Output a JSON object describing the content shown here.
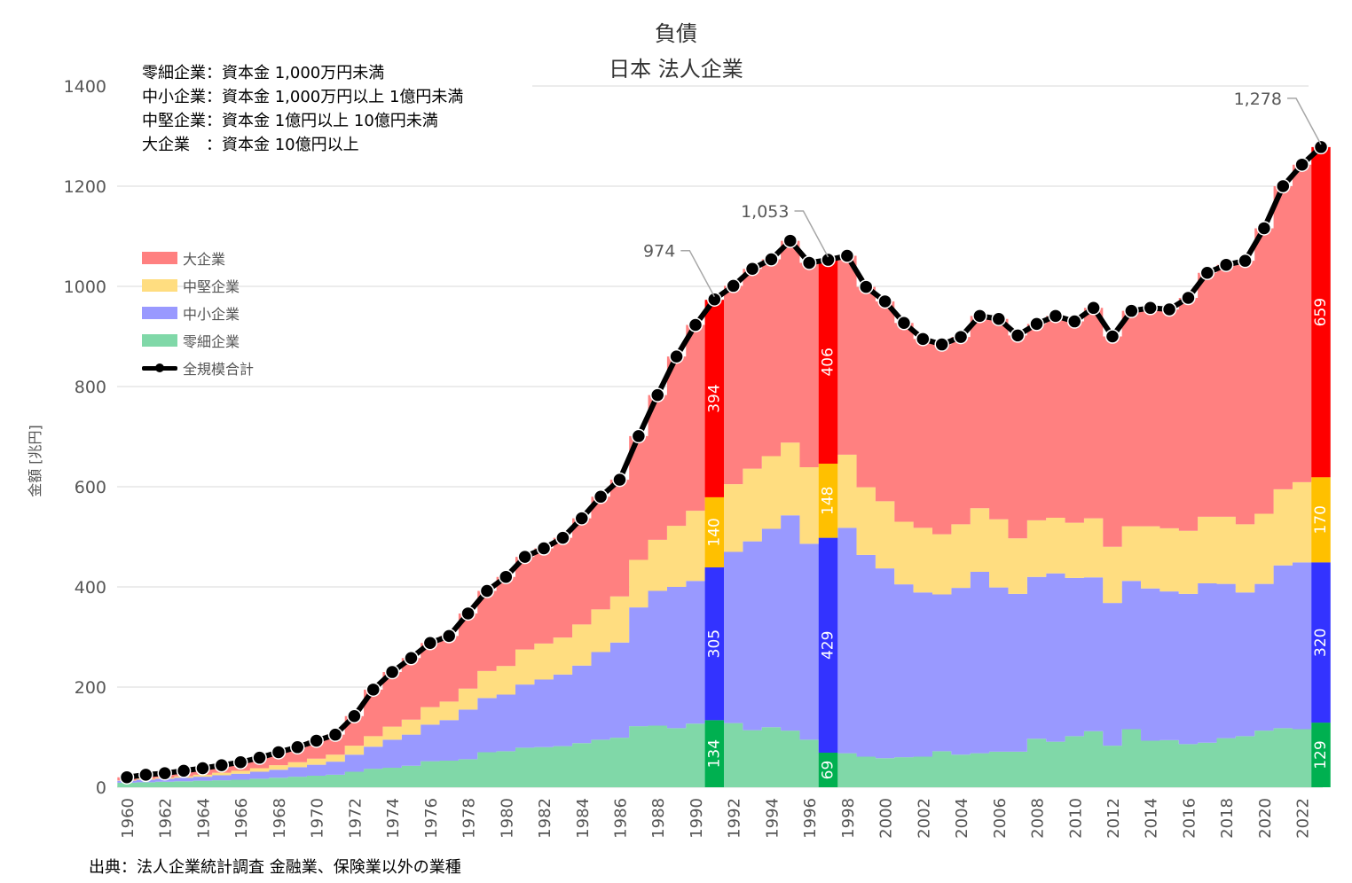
{
  "title": "負債",
  "subtitle": "日本 法人企業",
  "notes": [
    "零細企業：資本金 1,000万円未満",
    "中小企業：資本金 1,000万円以上 1億円未満",
    "中堅企業：資本金 1億円以上 10億円未満",
    "大企業　：資本金 10億円以上"
  ],
  "source": "出典：法人企業統計調査 金融業、保険業以外の業種",
  "chart_data": {
    "type": "area",
    "ylabel": "金額 [兆円]",
    "ylim": [
      0,
      1400
    ],
    "yticks": [
      0,
      200,
      400,
      600,
      800,
      1000,
      1200,
      1400
    ],
    "legend": [
      "大企業",
      "中堅企業",
      "中小企業",
      "零細企業",
      "全規模合計"
    ],
    "colors": {
      "large": "#ff8080",
      "mid": "#ffdd80",
      "small": "#9999ff",
      "micro": "#80d8a8",
      "large_hl": "#ff0000",
      "mid_hl": "#ffc000",
      "small_hl": "#3333ff",
      "micro_hl": "#00b050",
      "total": "#000000"
    },
    "years": [
      1960,
      1961,
      1962,
      1963,
      1964,
      1965,
      1966,
      1967,
      1968,
      1969,
      1970,
      1971,
      1972,
      1973,
      1974,
      1975,
      1976,
      1977,
      1978,
      1979,
      1980,
      1981,
      1982,
      1983,
      1984,
      1985,
      1986,
      1987,
      1988,
      1989,
      1990,
      1991,
      1992,
      1993,
      1994,
      1995,
      1996,
      1997,
      1998,
      1999,
      2000,
      2001,
      2002,
      2003,
      2004,
      2005,
      2006,
      2007,
      2008,
      2009,
      2010,
      2011,
      2012,
      2013,
      2014,
      2015,
      2016,
      2017,
      2018,
      2019,
      2020,
      2021,
      2022,
      2023
    ],
    "series": [
      {
        "name": "零細企業",
        "key": "micro",
        "values": [
          9,
          10,
          11,
          12,
          13,
          14,
          15,
          17,
          19,
          21,
          23,
          25,
          31,
          37,
          39,
          43,
          52,
          53,
          56,
          70,
          72,
          79,
          80,
          82,
          88,
          95,
          99,
          122,
          123,
          118,
          127,
          134,
          128,
          114,
          120,
          113,
          95,
          69,
          68,
          61,
          58,
          60,
          61,
          72,
          65,
          68,
          71,
          71,
          97,
          91,
          102,
          112,
          83,
          116,
          93,
          94,
          86,
          89,
          98,
          102,
          113,
          118,
          116,
          129
        ]
      },
      {
        "name": "中小企業",
        "key": "small",
        "values": [
          4,
          5,
          6,
          7,
          8,
          10,
          12,
          14,
          16,
          19,
          22,
          26,
          34,
          44,
          56,
          62,
          73,
          81,
          99,
          108,
          113,
          126,
          135,
          143,
          155,
          175,
          190,
          237,
          269,
          282,
          285,
          305,
          342,
          377,
          396,
          430,
          391,
          429,
          450,
          403,
          379,
          345,
          328,
          313,
          333,
          362,
          328,
          315,
          323,
          336,
          316,
          307,
          285,
          296,
          304,
          297,
          300,
          318,
          308,
          287,
          293,
          325,
          333,
          320
        ]
      },
      {
        "name": "中堅企業",
        "key": "mid",
        "values": [
          1,
          2,
          2,
          3,
          4,
          5,
          6,
          7,
          9,
          10,
          12,
          14,
          18,
          21,
          26,
          30,
          35,
          37,
          42,
          54,
          57,
          70,
          72,
          74,
          82,
          85,
          92,
          95,
          102,
          122,
          140,
          140,
          135,
          145,
          145,
          145,
          153,
          148,
          146,
          135,
          134,
          125,
          129,
          120,
          127,
          127,
          136,
          111,
          113,
          111,
          110,
          118,
          112,
          109,
          124,
          126,
          126,
          133,
          134,
          136,
          140,
          152,
          160,
          170
        ]
      },
      {
        "name": "大企業",
        "key": "large",
        "values": [
          6,
          8,
          9,
          11,
          13,
          15,
          17,
          21,
          26,
          30,
          36,
          40,
          59,
          93,
          109,
          123,
          128,
          131,
          150,
          160,
          178,
          185,
          190,
          199,
          212,
          225,
          233,
          247,
          289,
          338,
          371,
          394,
          396,
          399,
          393,
          403,
          408,
          406,
          397,
          400,
          399,
          397,
          377,
          379,
          374,
          384,
          400,
          405,
          392,
          403,
          402,
          420,
          420,
          430,
          436,
          437,
          465,
          487,
          503,
          526,
          570,
          605,
          634,
          659
        ]
      }
    ],
    "totals": [
      20,
      25,
      28,
      33,
      38,
      44,
      50,
      59,
      70,
      80,
      93,
      105,
      142,
      195,
      230,
      258,
      288,
      302,
      347,
      392,
      420,
      460,
      477,
      498,
      537,
      580,
      614,
      701,
      783,
      860,
      923,
      974,
      1001,
      1035,
      1054,
      1091,
      1047,
      1053,
      1061,
      999,
      970,
      927,
      895,
      884,
      899,
      941,
      935,
      902,
      925,
      941,
      930,
      957,
      900,
      951,
      957,
      954,
      977,
      1027,
      1043,
      1051,
      1116,
      1200,
      1243,
      1278
    ],
    "highlight_years": [
      1991,
      1997,
      2023
    ],
    "annotations": [
      {
        "year": 1991,
        "label": "974"
      },
      {
        "year": 1997,
        "label": "1,053"
      },
      {
        "year": 2023,
        "label": "1,278"
      }
    ]
  }
}
